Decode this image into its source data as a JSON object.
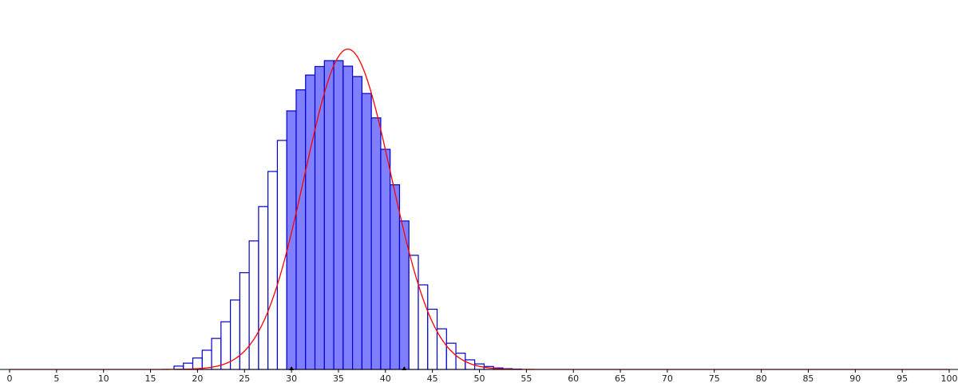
{
  "chart_data": {
    "type": "bar",
    "title": "",
    "xlabel": "",
    "ylabel": "",
    "xlim": [
      0,
      100
    ],
    "x_ticks": [
      "0",
      "5",
      "10",
      "15",
      "20",
      "25",
      "30",
      "35",
      "40",
      "45",
      "50",
      "55",
      "60",
      "65",
      "70",
      "75",
      "80",
      "85",
      "90",
      "95",
      "100"
    ],
    "y_axis_visible": false,
    "grid": false,
    "shaded_range": [
      30,
      42
    ],
    "markers": [
      30,
      42
    ],
    "curve": {
      "type": "normal",
      "mean": 36,
      "sd": 4.6
    },
    "categories": [
      18,
      19,
      20,
      21,
      22,
      23,
      24,
      25,
      26,
      27,
      28,
      29,
      30,
      31,
      32,
      33,
      34,
      35,
      36,
      37,
      38,
      39,
      40,
      41,
      42,
      43,
      44,
      45,
      46,
      47,
      48,
      49,
      50,
      51,
      52,
      53,
      54
    ],
    "values": [
      0.0009,
      0.0017,
      0.0031,
      0.0052,
      0.0084,
      0.0129,
      0.0188,
      0.0262,
      0.0348,
      0.0441,
      0.0536,
      0.062,
      0.07,
      0.0757,
      0.0797,
      0.082,
      0.0836,
      0.0836,
      0.0821,
      0.0793,
      0.0747,
      0.0681,
      0.0596,
      0.05,
      0.0402,
      0.0309,
      0.0229,
      0.0163,
      0.011,
      0.0071,
      0.0044,
      0.0026,
      0.0015,
      0.0008,
      0.0004,
      0.0002,
      0.0001
    ],
    "colors": {
      "bar_fill": "#8080ff",
      "bar_stroke": "#0000cc",
      "curve": "#ff0000",
      "axis": "#000000",
      "marker": "#000000"
    }
  }
}
